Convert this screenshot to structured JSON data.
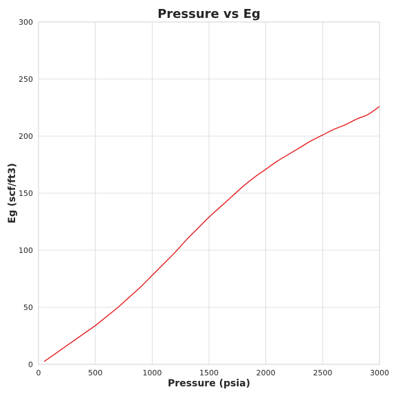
{
  "chart_data": {
    "type": "line",
    "title": "Pressure vs Eg",
    "xlabel": "Pressure (psia)",
    "ylabel": "Eg (scf/ft3)",
    "xlim": [
      0,
      3000
    ],
    "ylim": [
      0,
      300
    ],
    "xticks": [
      0,
      500,
      1000,
      1500,
      2000,
      2500,
      3000
    ],
    "yticks": [
      0,
      50,
      100,
      150,
      200,
      250,
      300
    ],
    "grid": true,
    "series": [
      {
        "color": "#e41a1c",
        "x": [
          50,
          100,
          200,
          300,
          400,
          500,
          600,
          700,
          800,
          900,
          1000,
          1100,
          1200,
          1300,
          1400,
          1500,
          1600,
          1700,
          1800,
          1900,
          2000,
          2100,
          2200,
          2300,
          2400,
          2500,
          2600,
          2700,
          2800,
          2900,
          3000
        ],
        "y": [
          2.5,
          6,
          13,
          20,
          27,
          34,
          42,
          50,
          59,
          68,
          78,
          88,
          98,
          109,
          119,
          129,
          138,
          147,
          156,
          164,
          171,
          178,
          184,
          190,
          196,
          201,
          206,
          210,
          215,
          219,
          226
        ]
      }
    ]
  }
}
